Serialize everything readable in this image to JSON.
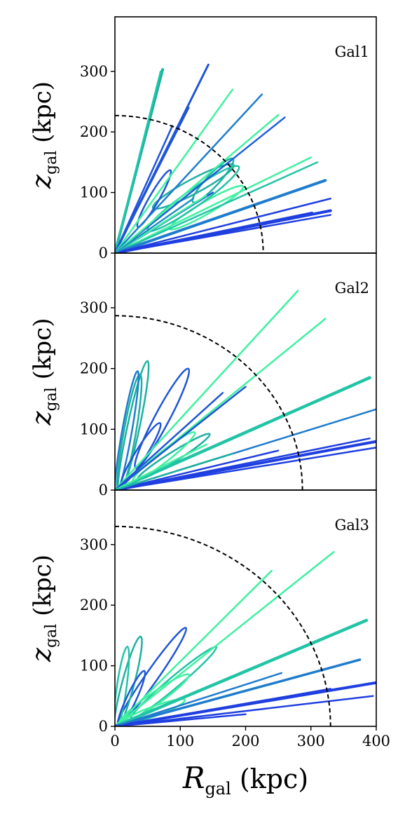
{
  "chart_data": [
    {
      "type": "line",
      "title": "Gal1",
      "xlabel": "",
      "ylabel": "z_gal (kpc)",
      "ylabel_main": "z",
      "ylabel_sub": "gal",
      "ylabel_unit": "(kpc)",
      "xlim": [
        0,
        400
      ],
      "ylim": [
        0,
        390
      ],
      "yticks": [
        0,
        100,
        200,
        300
      ],
      "xticks": [],
      "radius": 227,
      "series": [
        {
          "color": "#1f8fc4",
          "x": [
            0,
            70,
            65,
            0
          ]
        },
        {
          "points": [
            [
              0,
              0
            ],
            [
              73,
              303
            ]
          ],
          "color": "#1db0a2",
          "width": 4
        },
        {
          "points": [
            [
              0,
              0
            ],
            [
              70,
              300
            ]
          ],
          "color": "#21c8a8",
          "width": 2.5
        },
        {
          "points": [
            [
              0,
              0
            ],
            [
              143,
              311
            ]
          ],
          "color": "#1f55d6",
          "width": 3
        },
        {
          "points": [
            [
              0,
              0
            ],
            [
              113,
              240
            ]
          ],
          "color": "#1f55d6",
          "width": 2.5
        },
        {
          "points": [
            [
              0,
              0
            ],
            [
              88,
              210
            ]
          ],
          "color": "#1f55d6",
          "width": 2.5
        },
        {
          "points": [
            [
              0,
              0
            ],
            [
              180,
              270
            ]
          ],
          "color": "#3ef2a0",
          "width": 2.5
        },
        {
          "points": [
            [
              0,
              0
            ],
            [
              225,
              262
            ]
          ],
          "color": "#1e7ccd",
          "width": 2.5
        },
        {
          "points": [
            [
              0,
              0
            ],
            [
              260,
              224
            ]
          ],
          "color": "#1e5fd9",
          "width": 2.5
        },
        {
          "points": [
            [
              0,
              0
            ],
            [
              250,
              228
            ]
          ],
          "color": "#3ef2a0",
          "width": 2.5
        },
        {
          "points": [
            [
              0,
              0
            ],
            [
              300,
              158
            ]
          ],
          "color": "#3ef2a0",
          "width": 2.5
        },
        {
          "points": [
            [
              0,
              0
            ],
            [
              310,
              150
            ]
          ],
          "color": "#22c4a6",
          "width": 2.5
        },
        {
          "points": [
            [
              0,
              0
            ],
            [
              322,
              120
            ]
          ],
          "color": "#1e7ccd",
          "width": 4
        },
        {
          "points": [
            [
              0,
              0
            ],
            [
              330,
              90
            ]
          ],
          "color": "#1f3fe0",
          "width": 2.5
        },
        {
          "points": [
            [
              0,
              0
            ],
            [
              302,
              67
            ]
          ],
          "color": "#1f3fe0",
          "width": 2.5
        },
        {
          "points": [
            [
              0,
              0
            ],
            [
              330,
              70
            ]
          ],
          "color": "#1f3fe0",
          "width": 4
        },
        {
          "points": [
            [
              0,
              0
            ],
            [
              330,
              63
            ]
          ],
          "color": "#1f3fe0",
          "width": 2.5
        },
        {
          "points": [
            [
              0,
              0
            ],
            [
              150,
              100
            ]
          ],
          "color": "#1f55d6",
          "width": 2.5
        },
        {
          "points": [
            [
              0,
              0
            ],
            [
              140,
              95
            ]
          ],
          "color": "#3ef2a0",
          "width": 2.5
        },
        {
          "points": [
            [
              0,
              0
            ],
            [
              120,
              90
            ]
          ],
          "color": "#1f8fc4",
          "width": 2.5
        }
      ],
      "loops": [
        {
          "cx": 150,
          "cy": 120,
          "rx": 90,
          "ry": 10,
          "angle": 47,
          "color": "#1db0a2"
        },
        {
          "cx": 120,
          "cy": 110,
          "rx": 140,
          "ry": 12,
          "angle": 28,
          "color": "#1db0a2"
        },
        {
          "cx": 140,
          "cy": 75,
          "rx": 130,
          "ry": 10,
          "angle": 30,
          "color": "#3ef2a0"
        },
        {
          "cx": 60,
          "cy": 90,
          "rx": 100,
          "ry": 8,
          "angle": 60,
          "color": "#1f55d6"
        },
        {
          "cx": 120,
          "cy": 90,
          "rx": 170,
          "ry": 14,
          "angle": 35,
          "color": "#22c4a6"
        }
      ]
    },
    {
      "type": "line",
      "title": "Gal2",
      "xlabel": "",
      "ylabel": "z_gal (kpc)",
      "ylabel_main": "z",
      "ylabel_sub": "gal",
      "ylabel_unit": "(kpc)",
      "xlim": [
        0,
        400
      ],
      "ylim": [
        0,
        390
      ],
      "yticks": [
        0,
        100,
        200,
        300
      ],
      "xticks": [],
      "radius": 287,
      "series": [
        {
          "points": [
            [
              0,
              0
            ],
            [
              280,
              328
            ]
          ],
          "color": "#3ef2a0",
          "width": 2.5
        },
        {
          "points": [
            [
              0,
              0
            ],
            [
              322,
              282
            ]
          ],
          "color": "#3ef2a0",
          "width": 2.5
        },
        {
          "points": [
            [
              0,
              0
            ],
            [
              390,
              185
            ]
          ],
          "color": "#22c4a6",
          "width": 4.5
        },
        {
          "points": [
            [
              0,
              0
            ],
            [
              400,
              133
            ]
          ],
          "color": "#1e7ccd",
          "width": 2.5
        },
        {
          "points": [
            [
              0,
              0
            ],
            [
              390,
              85
            ]
          ],
          "color": "#1f3fe0",
          "width": 2.5
        },
        {
          "points": [
            [
              0,
              0
            ],
            [
              400,
              80
            ]
          ],
          "color": "#1f3fe0",
          "width": 4
        },
        {
          "points": [
            [
              0,
              0
            ],
            [
              400,
              70
            ]
          ],
          "color": "#1f3fe0",
          "width": 2.5
        },
        {
          "points": [
            [
              0,
              0
            ],
            [
              250,
              65
            ]
          ],
          "color": "#1f3fe0",
          "width": 2.5
        },
        {
          "points": [
            [
              0,
              0
            ],
            [
              200,
              170
            ]
          ],
          "color": "#1f55d6",
          "width": 2.5
        },
        {
          "points": [
            [
              0,
              0
            ],
            [
              165,
              160
            ]
          ],
          "color": "#1f55d6",
          "width": 2.5
        },
        {
          "points": [
            [
              0,
              0
            ],
            [
              140,
              75
            ]
          ],
          "color": "#3ef2a0",
          "width": 2.5
        },
        {
          "points": [
            [
              0,
              0
            ],
            [
              180,
              60
            ]
          ],
          "color": "#1db0a2",
          "width": 2.5
        }
      ],
      "loops": [
        {
          "cx": 72,
          "cy": 118,
          "rx": 172,
          "ry": 12,
          "angle": 62,
          "color": "#1f55d6"
        },
        {
          "cx": 22,
          "cy": 90,
          "rx": 190,
          "ry": 10,
          "angle": 80,
          "color": "#1db0a2"
        },
        {
          "cx": 28,
          "cy": 102,
          "rx": 210,
          "ry": 10,
          "angle": 78,
          "color": "#1db0a2"
        },
        {
          "cx": 18,
          "cy": 94,
          "rx": 192,
          "ry": 8,
          "angle": 80,
          "color": "#1e7ccd"
        },
        {
          "cx": 90,
          "cy": 55,
          "rx": 130,
          "ry": 8,
          "angle": 32,
          "color": "#1db0a2"
        },
        {
          "cx": 75,
          "cy": 55,
          "rx": 120,
          "ry": 9,
          "angle": 38,
          "color": "#3ef2a0"
        },
        {
          "cx": 40,
          "cy": 60,
          "rx": 110,
          "ry": 9,
          "angle": 58,
          "color": "#1f55d6"
        }
      ]
    },
    {
      "type": "line",
      "title": "Gal3",
      "xlabel": "R_gal (kpc)",
      "xlabel_main": "R",
      "xlabel_sub": "gal",
      "xlabel_unit": "(kpc)",
      "ylabel": "z_gal (kpc)",
      "ylabel_main": "z",
      "ylabel_sub": "gal",
      "ylabel_unit": "(kpc)",
      "xlim": [
        0,
        400
      ],
      "ylim": [
        0,
        390
      ],
      "yticks": [
        0,
        100,
        200,
        300
      ],
      "xticks": [
        0,
        100,
        200,
        300,
        400
      ],
      "radius": 330,
      "series": [
        {
          "points": [
            [
              0,
              0
            ],
            [
              335,
              288
            ]
          ],
          "color": "#3ef2a0",
          "width": 2.5
        },
        {
          "points": [
            [
              0,
              0
            ],
            [
              240,
              257
            ]
          ],
          "color": "#3ef2a0",
          "width": 2.5
        },
        {
          "points": [
            [
              0,
              0
            ],
            [
              385,
              175
            ]
          ],
          "color": "#22c4a6",
          "width": 4.5
        },
        {
          "points": [
            [
              0,
              0
            ],
            [
              375,
              110
            ]
          ],
          "color": "#1e7ccd",
          "width": 3.5
        },
        {
          "points": [
            [
              0,
              0
            ],
            [
              400,
              72
            ]
          ],
          "color": "#1f3fe0",
          "width": 4
        },
        {
          "points": [
            [
              0,
              0
            ],
            [
              395,
              50
            ]
          ],
          "color": "#1f3fe0",
          "width": 2.5
        },
        {
          "points": [
            [
              0,
              0
            ],
            [
              330,
              62
            ]
          ],
          "color": "#1f3fe0",
          "width": 2.5
        },
        {
          "points": [
            [
              0,
              0
            ],
            [
              255,
              88
            ]
          ],
          "color": "#1e7ccd",
          "width": 2.5
        },
        {
          "points": [
            [
              0,
              0
            ],
            [
              200,
              20
            ]
          ],
          "color": "#1f3fe0",
          "width": 2.5
        }
      ],
      "loops": [
        {
          "cx": 57,
          "cy": 83,
          "rx": 180,
          "ry": 10,
          "angle": 55,
          "color": "#1f55d6"
        },
        {
          "cx": 90,
          "cy": 72,
          "rx": 170,
          "ry": 9,
          "angle": 40,
          "color": "#22c4a6"
        },
        {
          "cx": 20,
          "cy": 70,
          "rx": 150,
          "ry": 10,
          "angle": 75,
          "color": "#1db0a2"
        },
        {
          "cx": 10,
          "cy": 62,
          "rx": 130,
          "ry": 8,
          "angle": 82,
          "color": "#22c4a6"
        },
        {
          "cx": 60,
          "cy": 45,
          "rx": 130,
          "ry": 10,
          "angle": 35,
          "color": "#3ef2a0"
        },
        {
          "cx": 25,
          "cy": 45,
          "rx": 95,
          "ry": 8,
          "angle": 65,
          "color": "#1f55d6"
        },
        {
          "cx": 60,
          "cy": 25,
          "rx": 100,
          "ry": 8,
          "angle": 20,
          "color": "#3ef2a0"
        }
      ]
    }
  ]
}
